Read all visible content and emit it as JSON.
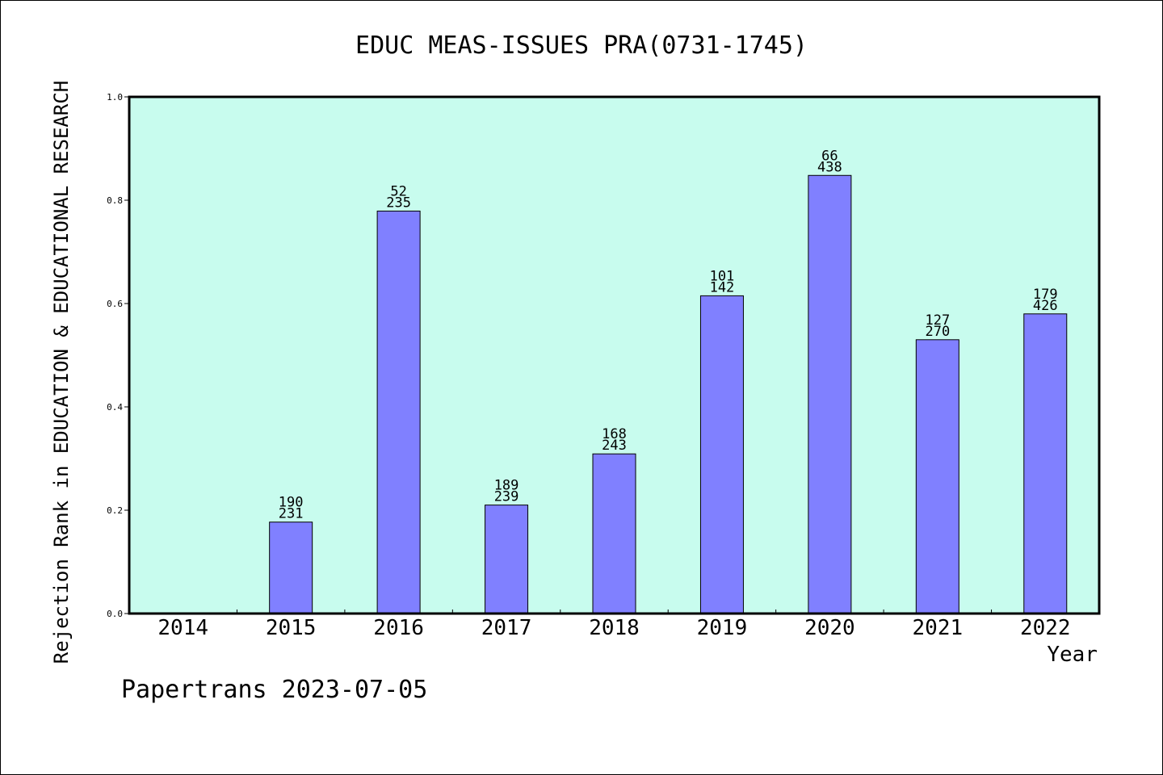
{
  "chart_data": {
    "type": "bar",
    "title": "EDUC MEAS-ISSUES PRA(0731-1745)",
    "xlabel": "Year",
    "ylabel": "Rejection Rank in EDUCATION & EDUCATIONAL RESEARCH",
    "footer": "Papertrans 2023-07-05",
    "categories": [
      "2014",
      "2015",
      "2016",
      "2017",
      "2018",
      "2019",
      "2020",
      "2021",
      "2022"
    ],
    "values": [
      null,
      0.177,
      0.779,
      0.21,
      0.309,
      0.615,
      0.848,
      0.53,
      0.58
    ],
    "labels_top": [
      "",
      "190",
      "52",
      "189",
      "168",
      "101",
      "66",
      "127",
      "179"
    ],
    "labels_bottom": [
      "",
      "231",
      "235",
      "239",
      "243",
      "142",
      "438",
      "270",
      "426"
    ],
    "ylim": [
      0,
      1.0
    ],
    "yticks": [
      "0.0",
      "0.2",
      "0.4",
      "0.6",
      "0.8",
      "1.0"
    ],
    "grid": false,
    "colors": {
      "plot_background": "#c8fcee",
      "bar_fill": "#8080ff",
      "axis": "#000000"
    }
  }
}
